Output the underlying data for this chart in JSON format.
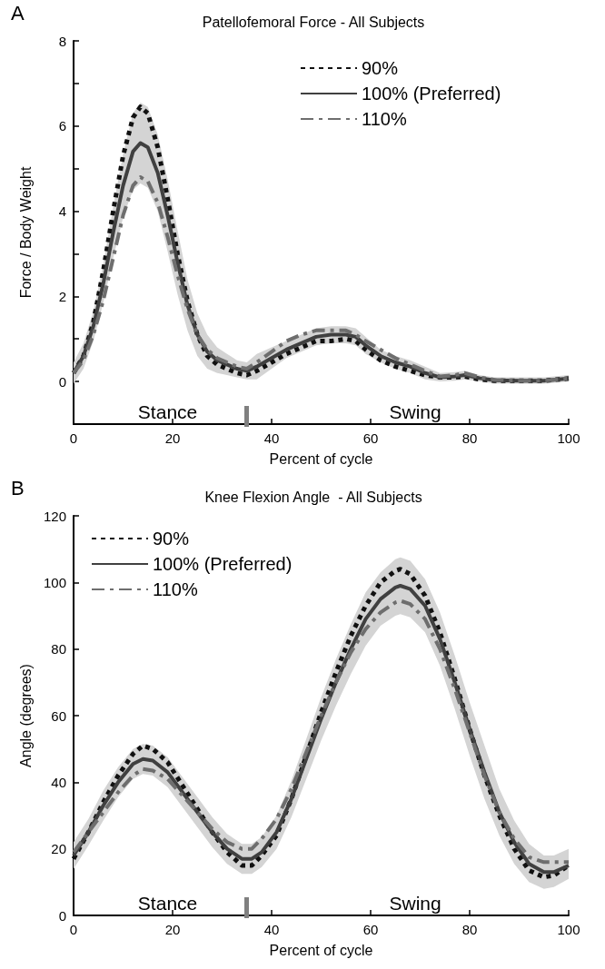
{
  "chart_data": [
    {
      "type": "line",
      "title": "Patellofemoral Force - All Subjects",
      "xlabel": "Percent of cycle",
      "ylabel": "Force / Body Weight",
      "xlim": [
        0,
        100
      ],
      "xticks": [
        0,
        20,
        40,
        60,
        80,
        100
      ],
      "ylim": [
        -1,
        8
      ],
      "yticks": [
        0,
        {
          "value": 1,
          "label": null
        },
        2,
        {
          "value": 3,
          "label": null
        },
        4,
        {
          "value": 5,
          "label": null
        },
        6,
        {
          "value": 7,
          "label": null
        },
        8
      ],
      "grid": false,
      "legend": "top right",
      "marker": "none",
      "annotations": [
        "A",
        "Stance",
        "Swing"
      ],
      "x": [
        0,
        2,
        4,
        6,
        8,
        10,
        12,
        13.5,
        15,
        17,
        19,
        21,
        23,
        25,
        27,
        29,
        31,
        33,
        35,
        37,
        40,
        43,
        46,
        49,
        52,
        55,
        57,
        59,
        62,
        65,
        68,
        71,
        74,
        77,
        79,
        82,
        85,
        90,
        95,
        100
      ],
      "series": [
        {
          "name": "90%",
          "color": "#111111",
          "line_style": "dotted",
          "values": [
            0.2,
            0.6,
            1.4,
            2.6,
            4.0,
            5.3,
            6.2,
            6.45,
            6.3,
            5.5,
            4.3,
            3.0,
            1.9,
            1.1,
            0.6,
            0.4,
            0.3,
            0.2,
            0.15,
            0.25,
            0.45,
            0.65,
            0.8,
            0.95,
            0.95,
            1.0,
            0.95,
            0.75,
            0.5,
            0.35,
            0.25,
            0.15,
            0.1,
            0.1,
            0.12,
            0.05,
            0.02,
            0.02,
            0.02,
            0.07
          ]
        },
        {
          "name": "100% (Preferred)",
          "color": "#404040",
          "line_style": "solid",
          "values": [
            0.2,
            0.6,
            1.3,
            2.3,
            3.5,
            4.6,
            5.4,
            5.6,
            5.5,
            4.9,
            3.9,
            2.8,
            1.8,
            1.1,
            0.7,
            0.5,
            0.4,
            0.3,
            0.25,
            0.35,
            0.55,
            0.75,
            0.9,
            1.05,
            1.1,
            1.1,
            1.05,
            0.85,
            0.6,
            0.45,
            0.35,
            0.2,
            0.1,
            0.12,
            0.15,
            0.08,
            0.03,
            0.02,
            0.02,
            0.07
          ],
          "lower": [
            -0.05,
            0.3,
            0.95,
            1.85,
            2.9,
            3.85,
            4.5,
            4.65,
            4.55,
            4.0,
            3.05,
            2.05,
            1.2,
            0.6,
            0.3,
            0.2,
            0.15,
            0.1,
            0.05,
            0.05,
            0.3,
            0.55,
            0.7,
            0.85,
            0.9,
            0.9,
            0.85,
            0.65,
            0.45,
            0.3,
            0.2,
            0.05,
            0.0,
            0.02,
            0.05,
            0.0,
            -0.05,
            -0.05,
            -0.05,
            0.0
          ],
          "upper": [
            0.45,
            0.9,
            1.65,
            2.75,
            4.1,
            5.35,
            6.3,
            6.55,
            6.45,
            5.8,
            4.75,
            3.55,
            2.4,
            1.6,
            1.1,
            0.8,
            0.65,
            0.5,
            0.45,
            0.65,
            0.8,
            0.95,
            1.1,
            1.25,
            1.3,
            1.3,
            1.25,
            1.05,
            0.75,
            0.6,
            0.5,
            0.35,
            0.2,
            0.22,
            0.25,
            0.15,
            0.1,
            0.1,
            0.1,
            0.15
          ]
        },
        {
          "name": "110%",
          "color": "#6e6e6e",
          "line_style": "dashed",
          "values": [
            0.2,
            0.5,
            1.1,
            1.9,
            2.9,
            3.9,
            4.6,
            4.8,
            4.7,
            4.2,
            3.4,
            2.5,
            1.7,
            1.1,
            0.75,
            0.55,
            0.45,
            0.35,
            0.3,
            0.45,
            0.7,
            0.95,
            1.1,
            1.2,
            1.2,
            1.2,
            1.1,
            0.95,
            0.75,
            0.55,
            0.4,
            0.25,
            0.12,
            0.15,
            0.2,
            0.1,
            0.04,
            0.02,
            0.02,
            0.07
          ]
        }
      ]
    },
    {
      "type": "line",
      "title": "Knee Flexion Angle  - All Subjects",
      "xlabel": "Percent of cycle",
      "ylabel": "Angle (degrees)",
      "xlim": [
        0,
        100
      ],
      "xticks": [
        0,
        20,
        40,
        60,
        80,
        100
      ],
      "ylim": [
        0,
        120
      ],
      "yticks": [
        0,
        20,
        40,
        60,
        80,
        100,
        120
      ],
      "grid": false,
      "legend": "top left",
      "marker": "none",
      "annotations": [
        "B",
        "Stance",
        "Swing"
      ],
      "x": [
        0,
        3,
        6,
        9,
        12,
        14,
        16,
        19,
        22,
        25,
        28,
        31,
        34,
        36,
        38,
        41,
        44,
        47,
        50,
        53,
        56,
        59,
        62,
        65,
        66,
        68,
        71,
        74,
        77,
        80,
        83,
        86,
        89,
        92,
        95,
        97,
        100
      ],
      "series": [
        {
          "name": "90%",
          "color": "#111111",
          "line_style": "dotted",
          "values": [
            17,
            25,
            34,
            42,
            48.5,
            51,
            50,
            46,
            39,
            32,
            25,
            19,
            15,
            15,
            18,
            24,
            35,
            48,
            61,
            73,
            84,
            93,
            100,
            103.5,
            104,
            102.5,
            96,
            85,
            71,
            56,
            42,
            30,
            20,
            13.5,
            11.5,
            12,
            15
          ]
        },
        {
          "name": "100% (Preferred)",
          "color": "#404040",
          "line_style": "solid",
          "values": [
            18,
            25,
            33,
            40,
            45.5,
            47,
            46.5,
            43,
            37,
            31,
            25,
            20,
            17,
            17,
            19,
            25,
            35,
            47,
            59,
            70,
            80,
            89,
            95,
            98.5,
            99,
            98,
            93,
            83,
            70,
            56,
            43,
            31,
            22,
            15.5,
            13,
            13,
            15
          ],
          "lower": [
            14,
            21,
            28.5,
            35.5,
            41,
            42.5,
            42,
            38.5,
            32.5,
            26.5,
            20.5,
            15.5,
            12.5,
            12.5,
            14.5,
            20,
            29.5,
            41,
            52.5,
            63,
            72.5,
            81,
            87,
            90,
            90.5,
            89.5,
            85,
            75,
            62,
            48,
            35,
            24,
            15.5,
            10,
            8,
            8.5,
            11
          ],
          "upper": [
            22,
            29,
            37.5,
            44.5,
            50,
            51.5,
            51,
            47.5,
            41.5,
            35.5,
            29.5,
            24.5,
            21.5,
            21.5,
            23.5,
            30,
            40.5,
            53,
            65.5,
            77,
            87.5,
            97,
            103,
            107,
            107.5,
            106.5,
            101,
            91,
            78,
            64,
            51,
            38,
            28.5,
            21.5,
            18,
            18,
            20
          ]
        },
        {
          "name": "110%",
          "color": "#6e6e6e",
          "line_style": "dashed",
          "values": [
            19,
            25,
            31,
            37,
            42,
            44,
            43.5,
            41,
            36,
            31,
            26,
            22,
            20,
            20,
            23,
            29,
            38,
            49,
            60,
            70,
            79,
            86,
            91,
            94,
            94.5,
            93.5,
            89,
            80,
            68,
            55,
            42,
            31,
            23,
            17.5,
            16,
            16,
            16
          ]
        }
      ]
    }
  ]
}
